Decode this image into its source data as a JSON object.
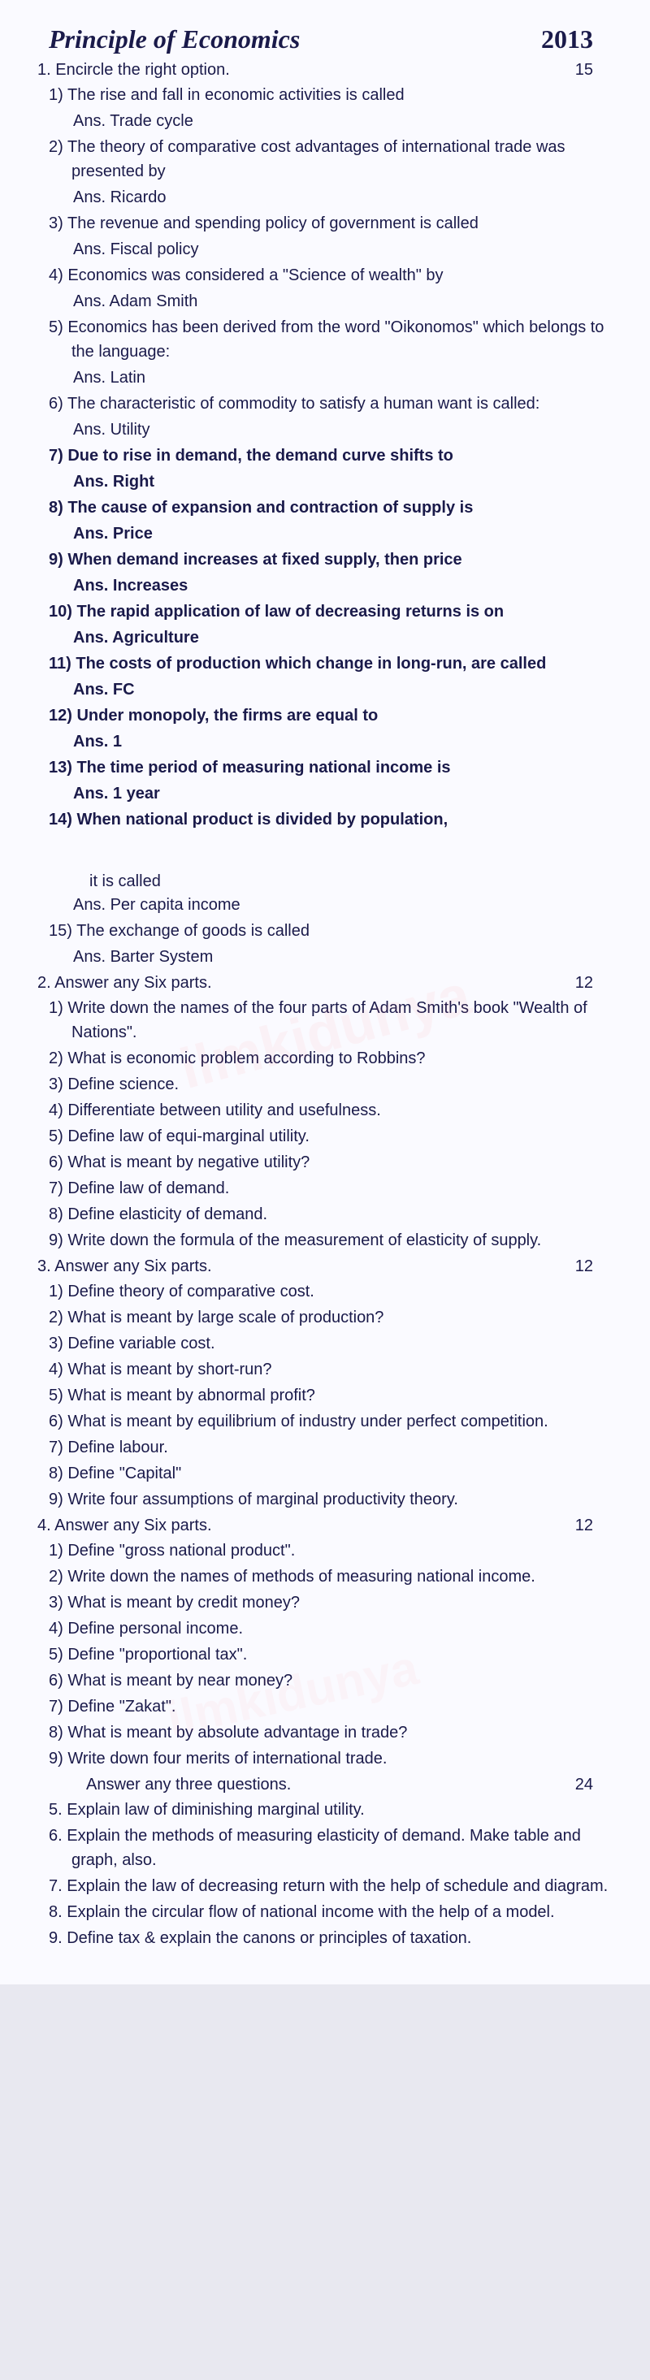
{
  "header": {
    "title": "Principle of Economics",
    "year": "2013"
  },
  "colors": {
    "text": "#1a1a4a",
    "bg": "#fafaff",
    "watermark": "rgba(255,100,100,0.06)"
  },
  "typography": {
    "title_font": "Times New Roman",
    "title_size": 32,
    "body_size": 20,
    "line_height": 1.5
  },
  "section1": {
    "label": "1. Encircle the right option.",
    "marks": "15",
    "cont": "it is called",
    "items": [
      {
        "n": "1)",
        "q": "The rise and fall in economic activities is called",
        "a": "Ans. Trade cycle"
      },
      {
        "n": "2)",
        "q": "The theory of comparative cost advantages of international trade was presented by",
        "a": "Ans. Ricardo"
      },
      {
        "n": "3)",
        "q": "The revenue and spending policy of government is called",
        "a": "Ans. Fiscal policy"
      },
      {
        "n": "4)",
        "q": "Economics was considered a \"Science of wealth\" by",
        "a": "Ans. Adam Smith"
      },
      {
        "n": "5)",
        "q": "Economics has been derived from the word \"Oikonomos\" which belongs to the language:",
        "a": "Ans. Latin"
      },
      {
        "n": "6)",
        "q": "The characteristic of commodity to satisfy a human want is called:",
        "a": "Ans. Utility"
      },
      {
        "n": "7)",
        "q": "Due to rise in demand, the demand curve shifts to",
        "a": "Ans. Right",
        "bold": true
      },
      {
        "n": "8)",
        "q": "The cause of expansion and contraction of supply is",
        "a": "Ans. Price",
        "bold": true
      },
      {
        "n": "9)",
        "q": "When demand increases at fixed supply, then price",
        "a": "Ans. Increases",
        "bold": true
      },
      {
        "n": "10)",
        "q": "The rapid application of law of decreasing returns is on",
        "a": "Ans. Agriculture",
        "bold": true
      },
      {
        "n": "11)",
        "q": "The costs of production which change in long-run, are called",
        "a": "Ans. FC",
        "bold": true
      },
      {
        "n": "12)",
        "q": "Under monopoly, the firms are equal to",
        "a": "Ans. 1",
        "bold": true
      },
      {
        "n": "13)",
        "q": "The time period of measuring national income is",
        "a": "Ans. 1 year",
        "bold": true
      },
      {
        "n": "14)",
        "q": "When national product is divided by population,",
        "a": "",
        "bold": true
      }
    ],
    "items_cont": [
      {
        "n": "",
        "q": "",
        "a": "Ans. Per capita income"
      },
      {
        "n": "15)",
        "q": "The exchange of goods is called",
        "a": "Ans. Barter System"
      }
    ]
  },
  "section2": {
    "label": "2. Answer any Six parts.",
    "marks": "12",
    "items": [
      {
        "n": "1)",
        "q": "Write down the names of the four parts of Adam Smith's book \"Wealth of Nations\"."
      },
      {
        "n": "2)",
        "q": "What is economic problem according to Robbins?"
      },
      {
        "n": "3)",
        "q": "Define science."
      },
      {
        "n": "4)",
        "q": "Differentiate between utility and usefulness."
      },
      {
        "n": "5)",
        "q": "Define law of equi-marginal utility."
      },
      {
        "n": "6)",
        "q": "What is meant by negative utility?"
      },
      {
        "n": "7)",
        "q": "Define law of demand."
      },
      {
        "n": "8)",
        "q": "Define elasticity of demand."
      },
      {
        "n": "9)",
        "q": "Write down the formula of the measurement of elasticity of supply."
      }
    ]
  },
  "section3": {
    "label": "3. Answer any Six parts.",
    "marks": "12",
    "items": [
      {
        "n": "1)",
        "q": "Define theory of comparative cost."
      },
      {
        "n": "2)",
        "q": "What is meant by large scale of production?"
      },
      {
        "n": "3)",
        "q": "Define variable cost."
      },
      {
        "n": "4)",
        "q": "What is meant by short-run?"
      },
      {
        "n": "5)",
        "q": "What is meant by abnormal profit?"
      },
      {
        "n": "6)",
        "q": "What is meant by equilibrium of industry under perfect competition."
      },
      {
        "n": "7)",
        "q": "Define labour."
      },
      {
        "n": "8)",
        "q": "Define \"Capital\""
      },
      {
        "n": "9)",
        "q": "Write four assumptions of marginal productivity theory."
      }
    ]
  },
  "section4": {
    "label": "4. Answer any Six parts.",
    "marks": "12",
    "items": [
      {
        "n": "1)",
        "q": "Define \"gross national product\"."
      },
      {
        "n": "2)",
        "q": "Write down the names of methods of measuring national income."
      },
      {
        "n": "3)",
        "q": "What is meant by credit money?"
      },
      {
        "n": "4)",
        "q": "Define personal income."
      },
      {
        "n": "5)",
        "q": "Define \"proportional tax\"."
      },
      {
        "n": "6)",
        "q": "What is meant by near money?"
      },
      {
        "n": "7)",
        "q": "Define \"Zakat\"."
      },
      {
        "n": "8)",
        "q": "What is meant by absolute advantage in trade?"
      },
      {
        "n": "9)",
        "q": "Write down four merits of international trade."
      }
    ]
  },
  "section5": {
    "label": "Answer any three questions.",
    "marks": "24",
    "items": [
      {
        "n": "5.",
        "q": "Explain law of diminishing marginal utility."
      },
      {
        "n": "6.",
        "q": "Explain the methods of measuring elasticity of demand. Make table and graph, also."
      },
      {
        "n": "7.",
        "q": "Explain the law of decreasing return with the help of schedule and diagram."
      },
      {
        "n": "8.",
        "q": "Explain the circular flow of national income with the help of a model."
      },
      {
        "n": "9.",
        "q": "Define tax & explain the canons or principles of taxation."
      }
    ]
  }
}
